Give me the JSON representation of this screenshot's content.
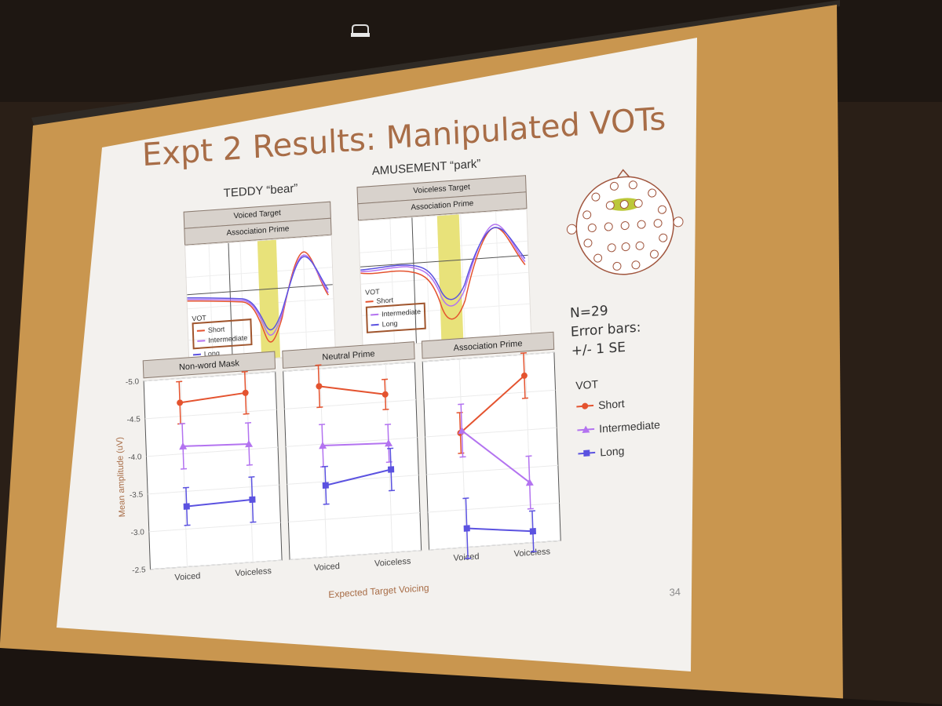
{
  "slide": {
    "title": "Expt 2 Results: Manipulated VOTs",
    "number": "34"
  },
  "waveforms": {
    "left": {
      "title": "TEDDY “bear”",
      "strips": [
        "Voiced Target",
        "Association Prime"
      ],
      "legend_title": "VOT",
      "legend": [
        "Short",
        "Intermediate",
        "Long"
      ]
    },
    "right": {
      "title": "AMUSEMENT “park”",
      "strips": [
        "Voiceless Target",
        "Association Prime"
      ],
      "legend_title": "VOT",
      "legend": [
        "Short",
        "Intermediate",
        "Long"
      ]
    }
  },
  "notes": {
    "n": "N=29",
    "error_bars_1": "Error bars:",
    "error_bars_2": "+/- 1 SE"
  },
  "vot_legend": {
    "title": "VOT",
    "items": [
      "Short",
      "Intermediate",
      "Long"
    ]
  },
  "colors": {
    "short": "#e4532f",
    "intermediate": "#b373f0",
    "long": "#5b52e0",
    "title": "#a86d47",
    "highlight": "#e8e27a"
  },
  "chart_data": {
    "type": "line",
    "ylabel": "Mean amplitude (uV)",
    "xlabel": "Expected Target Voicing",
    "ylim": [
      -5.0,
      -2.5
    ],
    "y_reversed": true,
    "yticks": [
      "-5.0",
      "-4.5",
      "-4.0",
      "-3.5",
      "-3.0",
      "-2.5"
    ],
    "categories": [
      "Voiced",
      "Voiceless"
    ],
    "facets": [
      {
        "name": "Non-word Mask",
        "series": [
          {
            "name": "Short",
            "values": [
              -4.68,
              -4.75
            ],
            "se": [
              0.28,
              0.28
            ]
          },
          {
            "name": "Intermediate",
            "values": [
              -4.1,
              -4.07
            ],
            "se": [
              0.3,
              0.28
            ]
          },
          {
            "name": "Long",
            "values": [
              -3.3,
              -3.33
            ],
            "se": [
              0.25,
              0.3
            ]
          }
        ]
      },
      {
        "name": "Neutral Prime",
        "series": [
          {
            "name": "Short",
            "values": [
              -4.77,
              -4.6
            ],
            "se": [
              0.28,
              0.2
            ]
          },
          {
            "name": "Intermediate",
            "values": [
              -3.98,
              -3.95
            ],
            "se": [
              0.28,
              0.25
            ]
          },
          {
            "name": "Long",
            "values": [
              -3.45,
              -3.6
            ],
            "se": [
              0.25,
              0.28
            ]
          }
        ]
      },
      {
        "name": "Association Prime",
        "series": [
          {
            "name": "Short",
            "values": [
              -4.02,
              -4.72
            ],
            "se": [
              0.27,
              0.3
            ]
          },
          {
            "name": "Intermediate",
            "values": [
              -4.05,
              -3.3
            ],
            "se": [
              0.35,
              0.35
            ]
          },
          {
            "name": "Long",
            "values": [
              -2.75,
              -2.65
            ],
            "se": [
              0.4,
              0.27
            ]
          }
        ]
      }
    ]
  }
}
